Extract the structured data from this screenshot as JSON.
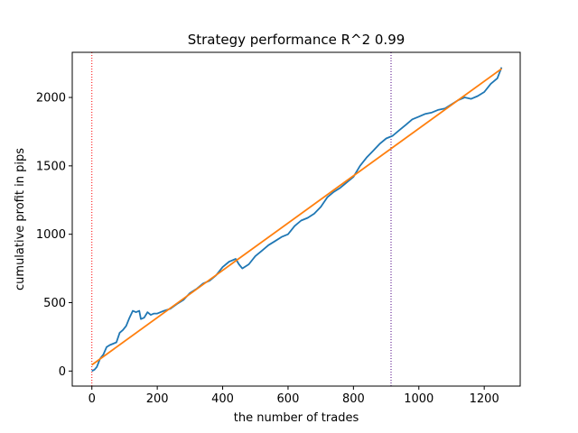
{
  "chart_data": {
    "type": "line",
    "title": "Strategy performance R^2 0.99",
    "xlabel": "the number of trades",
    "ylabel": "cumulative profit in pips",
    "xlim": [
      -60,
      1310
    ],
    "ylim": [
      -110,
      2330
    ],
    "xticks": [
      0,
      200,
      400,
      600,
      800,
      1000,
      1200
    ],
    "yticks": [
      0,
      500,
      1000,
      1500,
      2000
    ],
    "grid": false,
    "series": [
      {
        "color": "#1f77b4",
        "x": [
          0,
          8,
          15,
          25,
          35,
          45,
          55,
          65,
          75,
          85,
          95,
          105,
          115,
          125,
          135,
          145,
          150,
          160,
          170,
          180,
          190,
          200,
          210,
          220,
          240,
          260,
          280,
          300,
          320,
          340,
          360,
          380,
          400,
          420,
          440,
          450,
          460,
          480,
          500,
          520,
          540,
          560,
          580,
          600,
          620,
          640,
          660,
          680,
          700,
          720,
          740,
          760,
          780,
          800,
          820,
          840,
          860,
          880,
          900,
          920,
          940,
          960,
          980,
          1000,
          1020,
          1040,
          1060,
          1080,
          1100,
          1120,
          1140,
          1160,
          1180,
          1200,
          1220,
          1240,
          1253
        ],
        "y": [
          0,
          10,
          30,
          90,
          120,
          175,
          190,
          200,
          210,
          280,
          300,
          330,
          390,
          440,
          430,
          440,
          380,
          390,
          430,
          410,
          420,
          420,
          430,
          440,
          455,
          490,
          520,
          570,
          600,
          640,
          660,
          700,
          760,
          800,
          820,
          780,
          750,
          780,
          840,
          880,
          920,
          950,
          980,
          1000,
          1060,
          1100,
          1120,
          1150,
          1200,
          1270,
          1310,
          1340,
          1380,
          1420,
          1500,
          1560,
          1610,
          1660,
          1700,
          1720,
          1760,
          1800,
          1840,
          1860,
          1880,
          1890,
          1910,
          1920,
          1950,
          1980,
          2000,
          1990,
          2010,
          2040,
          2100,
          2140,
          2220
        ]
      },
      {
        "color": "#ff7f0e",
        "x": [
          0,
          1253
        ],
        "y": [
          45,
          2210
        ]
      }
    ],
    "vlines": [
      {
        "x": 0,
        "color": "#ff0000",
        "style": "dotted"
      },
      {
        "x": 915,
        "color": "#4b0082",
        "style": "dotted"
      }
    ]
  }
}
